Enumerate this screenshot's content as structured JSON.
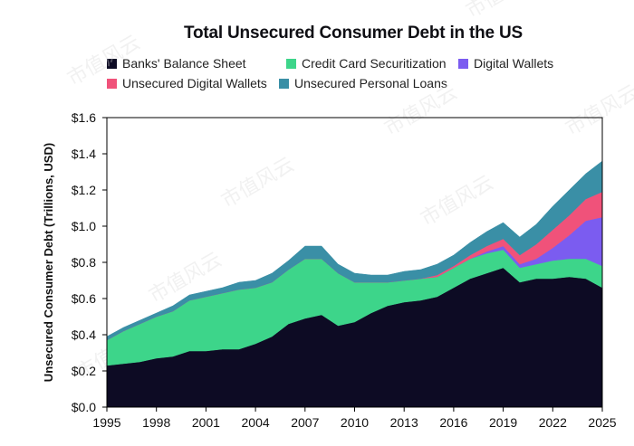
{
  "chart_data": {
    "type": "area",
    "title": "Total Unsecured Consumer Debt in the US",
    "xlabel": "",
    "ylabel": "Unsecured Consumer Debt (Trillions, USD)",
    "xlim": [
      1995,
      2025
    ],
    "ylim": [
      0.0,
      1.6
    ],
    "y_ticks": [
      "$0.0",
      "$0.2",
      "$0.4",
      "$0.6",
      "$0.8",
      "$1.0",
      "$1.2",
      "$1.4",
      "$1.6"
    ],
    "y_tick_values": [
      0.0,
      0.2,
      0.4,
      0.6,
      0.8,
      1.0,
      1.2,
      1.4,
      1.6
    ],
    "x_ticks": [
      "1995",
      "1998",
      "2001",
      "2004",
      "2007",
      "2010",
      "2013",
      "2016",
      "2019",
      "2022",
      "2025"
    ],
    "x_tick_values": [
      1995,
      1998,
      2001,
      2004,
      2007,
      2010,
      2013,
      2016,
      2019,
      2022,
      2025
    ],
    "stacked": true,
    "grid": false,
    "legend_placement": "top",
    "x": [
      1995,
      1996,
      1997,
      1998,
      1999,
      2000,
      2001,
      2002,
      2003,
      2004,
      2005,
      2006,
      2007,
      2008,
      2009,
      2010,
      2011,
      2012,
      2013,
      2014,
      2015,
      2016,
      2017,
      2018,
      2019,
      2020,
      2021,
      2022,
      2023,
      2024,
      2025
    ],
    "series": [
      {
        "name": "Banks' Balance Sheet",
        "color": "#0d0b24",
        "values": [
          0.23,
          0.24,
          0.25,
          0.27,
          0.28,
          0.31,
          0.31,
          0.32,
          0.32,
          0.35,
          0.39,
          0.46,
          0.49,
          0.51,
          0.45,
          0.47,
          0.52,
          0.56,
          0.58,
          0.59,
          0.61,
          0.66,
          0.71,
          0.74,
          0.77,
          0.69,
          0.71,
          0.71,
          0.72,
          0.71,
          0.66
        ]
      },
      {
        "name": "Credit Card Securitization",
        "color": "#3dd58a",
        "values": [
          0.14,
          0.18,
          0.21,
          0.23,
          0.25,
          0.28,
          0.3,
          0.31,
          0.33,
          0.31,
          0.3,
          0.3,
          0.33,
          0.31,
          0.29,
          0.22,
          0.17,
          0.13,
          0.12,
          0.12,
          0.11,
          0.11,
          0.11,
          0.11,
          0.1,
          0.08,
          0.08,
          0.1,
          0.1,
          0.11,
          0.12
        ]
      },
      {
        "name": "Digital Wallets",
        "color": "#7b5cf0",
        "values": [
          0,
          0,
          0,
          0,
          0,
          0,
          0,
          0,
          0,
          0,
          0,
          0,
          0,
          0,
          0,
          0,
          0,
          0,
          0,
          0,
          0,
          0,
          0,
          0.01,
          0.02,
          0.02,
          0.03,
          0.07,
          0.13,
          0.21,
          0.27
        ]
      },
      {
        "name": "Unsecured Digital Wallets",
        "color": "#f0527a",
        "values": [
          0,
          0,
          0,
          0,
          0,
          0,
          0,
          0,
          0,
          0,
          0,
          0,
          0,
          0,
          0,
          0,
          0,
          0,
          0,
          0,
          0.01,
          0.01,
          0.02,
          0.03,
          0.04,
          0.05,
          0.08,
          0.1,
          0.11,
          0.12,
          0.14
        ]
      },
      {
        "name": "Unsecured Personal Loans",
        "color": "#3a8fa6",
        "values": [
          0.02,
          0.02,
          0.02,
          0.02,
          0.03,
          0.03,
          0.03,
          0.03,
          0.04,
          0.04,
          0.05,
          0.05,
          0.07,
          0.07,
          0.05,
          0.05,
          0.04,
          0.04,
          0.05,
          0.05,
          0.06,
          0.06,
          0.07,
          0.08,
          0.09,
          0.1,
          0.11,
          0.13,
          0.14,
          0.14,
          0.17
        ]
      }
    ]
  },
  "watermark_text": "市值风云"
}
